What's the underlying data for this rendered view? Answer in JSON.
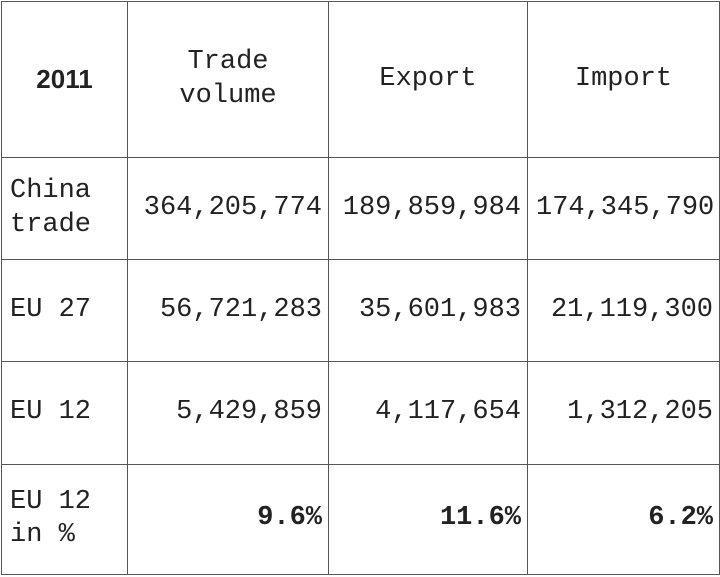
{
  "table": {
    "header": [
      "2011",
      "Trade volume",
      "Export",
      "Import"
    ],
    "rows": [
      [
        "China trade",
        "364,205,774",
        "189,859,984",
        "174,345,790"
      ],
      [
        "EU 27",
        "56,721,283",
        "35,601,983",
        "21,119,300"
      ],
      [
        "EU 12",
        "5,429,859",
        "4,117,654",
        "1,312,205"
      ],
      [
        "EU 12 in %",
        "9.6%",
        "11.6%",
        "6.2%"
      ]
    ]
  }
}
